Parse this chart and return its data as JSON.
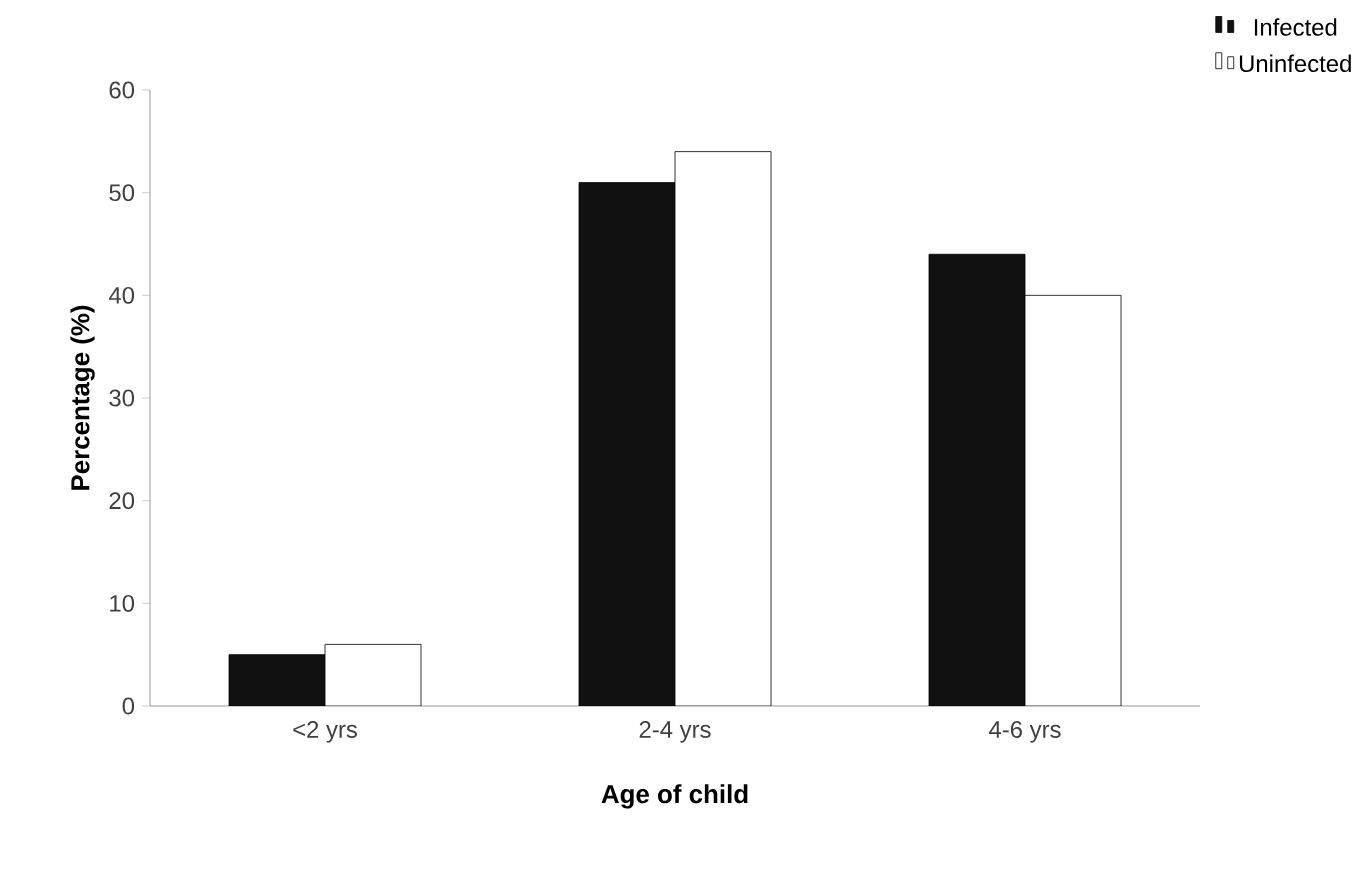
{
  "chart_data": {
    "type": "bar",
    "xlabel": "Age of child",
    "ylabel": "Percentage (%)",
    "categories": [
      "<2 yrs",
      "2-4 yrs",
      "4-6 yrs"
    ],
    "series": [
      {
        "name": "Infected",
        "color": "#111111",
        "values": [
          5,
          51,
          44
        ]
      },
      {
        "name": "Uninfected",
        "color": "#ffffff",
        "values": [
          6,
          54,
          40
        ]
      }
    ],
    "ylim": [
      0,
      60
    ],
    "yticks": [
      0,
      10,
      20,
      30,
      40,
      50,
      60
    ],
    "grid": false,
    "legend": "top right"
  }
}
